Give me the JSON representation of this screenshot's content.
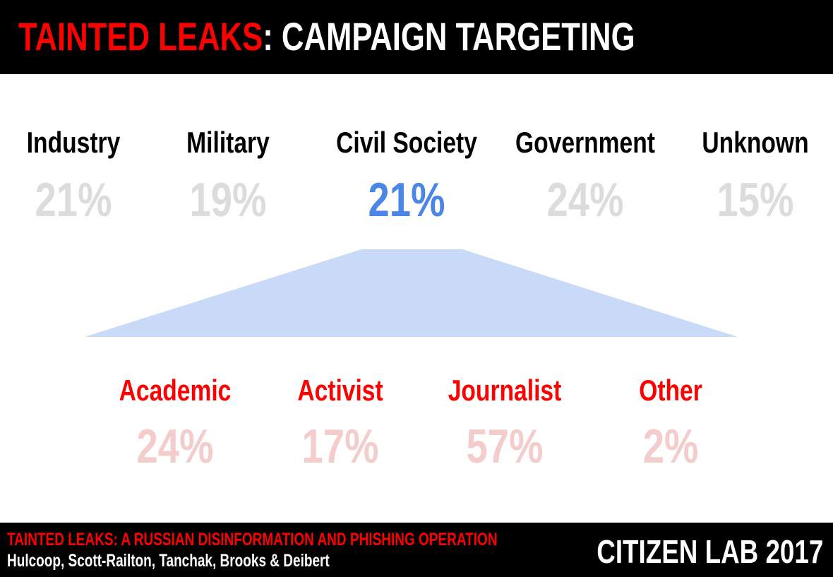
{
  "header": {
    "title_red": "TAINTED LEAKS",
    "title_white": ": CAMPAIGN TARGETING"
  },
  "colors": {
    "header_bg": "#000000",
    "highlight": "#4a86e8",
    "connector": "#c9daf8",
    "sub_label": "#ff0000",
    "sub_value": "#f4cccc",
    "muted_value": "#dcdcdc"
  },
  "chart_data": [
    {
      "type": "table",
      "categories": [
        "Industry",
        "Military",
        "Civil Society",
        "Government",
        "Unknown"
      ],
      "values": [
        21,
        19,
        21,
        24,
        15
      ],
      "labels": [
        "21%",
        "19%",
        "21%",
        "24%",
        "15%"
      ],
      "highlighted": "Civil Society"
    },
    {
      "type": "table",
      "parent": "Civil Society",
      "categories": [
        "Academic",
        "Activist",
        "Journalist",
        "Other"
      ],
      "values": [
        24,
        17,
        57,
        2
      ],
      "labels": [
        "24%",
        "17%",
        "57%",
        "2%"
      ]
    }
  ],
  "footer": {
    "report_title": "TAINTED LEAKS: A RUSSIAN DISINFORMATION AND PHISHING OPERATION",
    "authors": "Hulcoop, Scott-Railton, Tanchak, Brooks & Deibert",
    "brand": "CITIZEN LAB 2017"
  }
}
